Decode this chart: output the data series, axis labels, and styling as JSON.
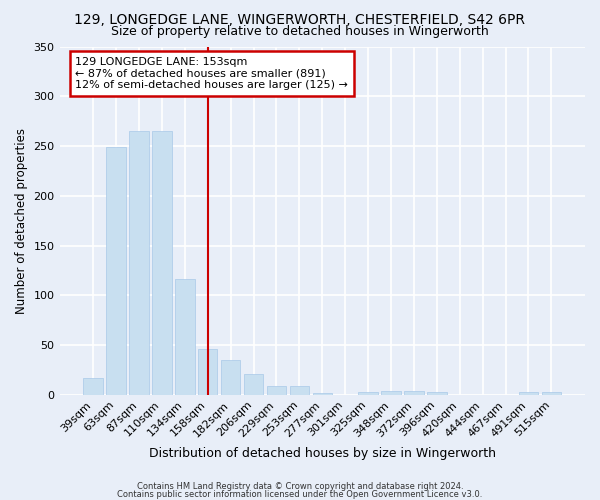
{
  "title_line1": "129, LONGEDGE LANE, WINGERWORTH, CHESTERFIELD, S42 6PR",
  "title_line2": "Size of property relative to detached houses in Wingerworth",
  "xlabel": "Distribution of detached houses by size in Wingerworth",
  "ylabel": "Number of detached properties",
  "categories": [
    "39sqm",
    "63sqm",
    "87sqm",
    "110sqm",
    "134sqm",
    "158sqm",
    "182sqm",
    "206sqm",
    "229sqm",
    "253sqm",
    "277sqm",
    "301sqm",
    "325sqm",
    "348sqm",
    "372sqm",
    "396sqm",
    "420sqm",
    "444sqm",
    "467sqm",
    "491sqm",
    "515sqm"
  ],
  "values": [
    17,
    249,
    265,
    265,
    116,
    46,
    35,
    21,
    9,
    9,
    2,
    0,
    3,
    4,
    4,
    3,
    0,
    0,
    0,
    3,
    3
  ],
  "bar_color": "#c8dff0",
  "bar_edge_color": "#a8c8e8",
  "ref_line_index": 5,
  "ref_line_color": "#cc0000",
  "annotation_line1": "129 LONGEDGE LANE: 153sqm",
  "annotation_line2": "← 87% of detached houses are smaller (891)",
  "annotation_line3": "12% of semi-detached houses are larger (125) →",
  "annotation_box_color": "#ffffff",
  "annotation_box_edge_color": "#cc0000",
  "ylim": [
    0,
    350
  ],
  "footnote1": "Contains HM Land Registry data © Crown copyright and database right 2024.",
  "footnote2": "Contains public sector information licensed under the Open Government Licence v3.0.",
  "bg_color": "#e8eef8",
  "grid_color": "#ffffff"
}
